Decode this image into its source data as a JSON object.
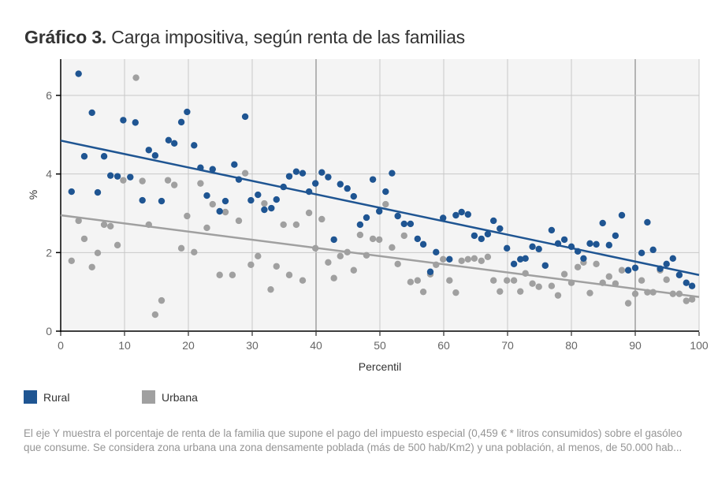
{
  "header": {
    "title_bold": "Gráfico 3.",
    "title_rest": " Carga impositiva, según renta de las familias"
  },
  "legend": [
    {
      "label": "Rural",
      "color": "#1f5592"
    },
    {
      "label": "Urbana",
      "color": "#a0a0a0"
    }
  ],
  "note": "El eje Y muestra el porcentaje de renta de la familia que supone el pago del impuesto especial (0,459 € * litros consumidos) sobre el gasóleo que consume. Se considera zona urbana una zona densamente poblada (más de 500 hab/Km2) y una población, al menos, de 50.000 hab...",
  "chart_data": {
    "type": "scatter",
    "title": "Gráfico 3. Carga impositiva, según renta de las familias",
    "xlabel": "Percentil",
    "ylabel": "%",
    "xlim": [
      0,
      100
    ],
    "ylim": [
      0,
      7
    ],
    "xticks": [
      0,
      10,
      20,
      30,
      40,
      50,
      60,
      70,
      80,
      90,
      100
    ],
    "yticks": [
      0,
      2,
      4,
      6
    ],
    "grid": true,
    "legend_position": "bottom-left",
    "series": [
      {
        "name": "Rural",
        "color": "#1f5592",
        "trendline": {
          "x": [
            0,
            100
          ],
          "y": [
            4.85,
            1.43
          ]
        },
        "points": [
          [
            1.7,
            3.55
          ],
          [
            2.8,
            6.55
          ],
          [
            3.7,
            4.45
          ],
          [
            4.9,
            5.56
          ],
          [
            5.8,
            3.53
          ],
          [
            6.8,
            4.45
          ],
          [
            7.8,
            3.96
          ],
          [
            8.9,
            3.94
          ],
          [
            9.8,
            5.37
          ],
          [
            10.9,
            3.92
          ],
          [
            11.7,
            5.31
          ],
          [
            12.8,
            3.33
          ],
          [
            13.8,
            4.61
          ],
          [
            14.8,
            4.47
          ],
          [
            15.8,
            3.31
          ],
          [
            16.9,
            4.86
          ],
          [
            17.8,
            4.78
          ],
          [
            18.9,
            5.32
          ],
          [
            19.8,
            5.58
          ],
          [
            20.9,
            4.73
          ],
          [
            21.9,
            4.16
          ],
          [
            22.9,
            3.45
          ],
          [
            23.8,
            4.12
          ],
          [
            24.9,
            3.05
          ],
          [
            25.8,
            3.31
          ],
          [
            27.2,
            4.24
          ],
          [
            27.9,
            3.86
          ],
          [
            28.9,
            5.46
          ],
          [
            29.8,
            3.33
          ],
          [
            30.9,
            3.47
          ],
          [
            31.9,
            3.09
          ],
          [
            33.0,
            3.13
          ],
          [
            33.8,
            3.35
          ],
          [
            34.9,
            3.67
          ],
          [
            35.8,
            3.94
          ],
          [
            36.9,
            4.06
          ],
          [
            37.9,
            4.02
          ],
          [
            38.9,
            3.55
          ],
          [
            39.9,
            3.76
          ],
          [
            40.9,
            4.04
          ],
          [
            41.9,
            3.92
          ],
          [
            42.8,
            2.33
          ],
          [
            43.8,
            3.74
          ],
          [
            44.9,
            3.63
          ],
          [
            45.9,
            3.43
          ],
          [
            46.9,
            2.71
          ],
          [
            47.9,
            2.89
          ],
          [
            48.9,
            3.86
          ],
          [
            49.9,
            3.05
          ],
          [
            50.9,
            3.55
          ],
          [
            51.9,
            4.02
          ],
          [
            52.8,
            2.93
          ],
          [
            53.8,
            2.73
          ],
          [
            54.8,
            2.73
          ],
          [
            55.9,
            2.35
          ],
          [
            56.8,
            2.21
          ],
          [
            57.9,
            1.51
          ],
          [
            58.8,
            2.01
          ],
          [
            59.9,
            2.88
          ],
          [
            60.9,
            1.83
          ],
          [
            61.9,
            2.95
          ],
          [
            62.8,
            3.03
          ],
          [
            63.8,
            2.97
          ],
          [
            64.8,
            2.43
          ],
          [
            65.9,
            2.35
          ],
          [
            66.9,
            2.47
          ],
          [
            67.8,
            2.81
          ],
          [
            68.8,
            2.61
          ],
          [
            69.9,
            2.11
          ],
          [
            71.0,
            1.71
          ],
          [
            72.0,
            1.83
          ],
          [
            72.8,
            1.85
          ],
          [
            73.9,
            2.15
          ],
          [
            74.9,
            2.09
          ],
          [
            75.9,
            1.67
          ],
          [
            76.9,
            2.57
          ],
          [
            77.9,
            2.23
          ],
          [
            78.9,
            2.33
          ],
          [
            80.0,
            2.15
          ],
          [
            81.0,
            2.03
          ],
          [
            81.9,
            1.85
          ],
          [
            82.9,
            2.23
          ],
          [
            83.9,
            2.21
          ],
          [
            84.9,
            2.75
          ],
          [
            85.9,
            2.19
          ],
          [
            86.9,
            2.43
          ],
          [
            87.9,
            2.95
          ],
          [
            88.9,
            1.55
          ],
          [
            90.0,
            1.61
          ],
          [
            91.0,
            1.99
          ],
          [
            91.9,
            2.77
          ],
          [
            92.8,
            2.07
          ],
          [
            93.9,
            1.59
          ],
          [
            94.9,
            1.71
          ],
          [
            95.9,
            1.85
          ],
          [
            96.9,
            1.43
          ],
          [
            98.0,
            1.23
          ],
          [
            98.9,
            1.15
          ]
        ]
      },
      {
        "name": "Urbana",
        "color": "#a0a0a0",
        "trendline": {
          "x": [
            0,
            100
          ],
          "y": [
            2.95,
            0.87
          ]
        },
        "points": [
          [
            1.7,
            1.79
          ],
          [
            2.8,
            2.81
          ],
          [
            3.7,
            2.35
          ],
          [
            4.9,
            1.63
          ],
          [
            5.8,
            1.99
          ],
          [
            6.8,
            2.71
          ],
          [
            7.8,
            2.67
          ],
          [
            8.9,
            2.19
          ],
          [
            9.8,
            3.84
          ],
          [
            11.8,
            6.45
          ],
          [
            12.8,
            3.82
          ],
          [
            13.8,
            2.71
          ],
          [
            14.8,
            0.42
          ],
          [
            15.8,
            0.78
          ],
          [
            16.8,
            3.84
          ],
          [
            17.8,
            3.72
          ],
          [
            18.9,
            2.11
          ],
          [
            19.8,
            2.93
          ],
          [
            20.9,
            2.01
          ],
          [
            21.9,
            3.76
          ],
          [
            22.9,
            2.63
          ],
          [
            23.8,
            3.23
          ],
          [
            24.9,
            1.43
          ],
          [
            25.8,
            3.03
          ],
          [
            26.9,
            1.43
          ],
          [
            27.9,
            2.81
          ],
          [
            28.9,
            4.02
          ],
          [
            29.8,
            1.69
          ],
          [
            30.9,
            1.91
          ],
          [
            31.9,
            3.25
          ],
          [
            32.9,
            1.06
          ],
          [
            33.8,
            1.65
          ],
          [
            34.9,
            2.71
          ],
          [
            35.8,
            1.43
          ],
          [
            36.9,
            2.71
          ],
          [
            37.9,
            1.29
          ],
          [
            38.9,
            3.01
          ],
          [
            39.9,
            2.11
          ],
          [
            40.9,
            2.85
          ],
          [
            41.9,
            1.75
          ],
          [
            42.8,
            1.35
          ],
          [
            43.8,
            1.91
          ],
          [
            44.9,
            2.01
          ],
          [
            45.9,
            1.55
          ],
          [
            46.9,
            2.45
          ],
          [
            47.9,
            1.93
          ],
          [
            48.9,
            2.35
          ],
          [
            49.9,
            2.33
          ],
          [
            50.9,
            3.23
          ],
          [
            51.9,
            2.13
          ],
          [
            52.8,
            1.71
          ],
          [
            53.8,
            2.43
          ],
          [
            54.8,
            1.25
          ],
          [
            55.9,
            1.29
          ],
          [
            56.8,
            1.0
          ],
          [
            57.9,
            1.45
          ],
          [
            58.8,
            1.69
          ],
          [
            59.9,
            1.83
          ],
          [
            60.9,
            1.29
          ],
          [
            61.9,
            0.98
          ],
          [
            62.8,
            1.79
          ],
          [
            63.8,
            1.83
          ],
          [
            64.8,
            1.85
          ],
          [
            65.9,
            1.79
          ],
          [
            66.9,
            1.89
          ],
          [
            67.8,
            1.29
          ],
          [
            68.8,
            1.01
          ],
          [
            69.9,
            1.29
          ],
          [
            71.0,
            1.29
          ],
          [
            72.0,
            1.01
          ],
          [
            72.8,
            1.47
          ],
          [
            73.9,
            1.21
          ],
          [
            74.9,
            1.13
          ],
          [
            75.9,
            1.67
          ],
          [
            76.9,
            1.15
          ],
          [
            77.9,
            0.91
          ],
          [
            78.9,
            1.45
          ],
          [
            80.0,
            1.23
          ],
          [
            81.0,
            1.63
          ],
          [
            81.9,
            1.75
          ],
          [
            82.9,
            0.97
          ],
          [
            83.9,
            1.71
          ],
          [
            84.9,
            1.23
          ],
          [
            85.9,
            1.39
          ],
          [
            86.9,
            1.21
          ],
          [
            87.9,
            1.55
          ],
          [
            88.9,
            0.71
          ],
          [
            90.0,
            0.95
          ],
          [
            91.0,
            1.29
          ],
          [
            91.9,
            0.99
          ],
          [
            92.8,
            0.99
          ],
          [
            93.9,
            1.55
          ],
          [
            94.9,
            1.31
          ],
          [
            95.9,
            0.95
          ],
          [
            96.9,
            0.95
          ],
          [
            98.0,
            0.77
          ],
          [
            98.9,
            0.81
          ]
        ]
      }
    ]
  }
}
